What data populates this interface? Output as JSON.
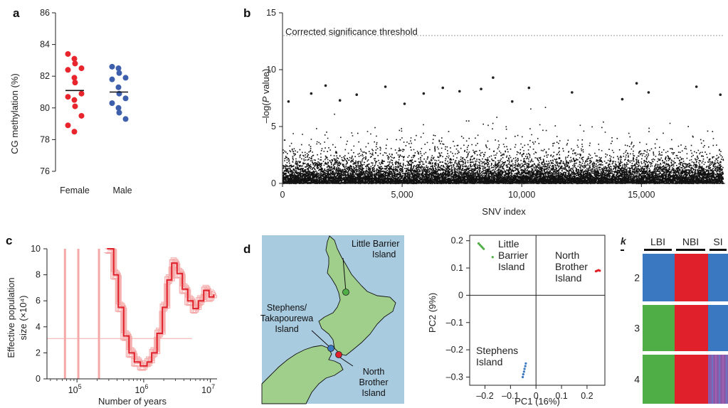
{
  "panels": {
    "a": {
      "letter": "a",
      "chart_data": {
        "type": "scatter",
        "ylabel": "CG methylation (%)",
        "categories": [
          "Female",
          "Male"
        ],
        "yticks": [
          76,
          78,
          80,
          82,
          84,
          86
        ],
        "ylim": [
          76,
          86
        ],
        "series": [
          {
            "name": "Female",
            "values": [
              83.4,
              83.1,
              82.8,
              82.5,
              82.4,
              81.9,
              81.6,
              80.9,
              80.7,
              80.5,
              80.1,
              79.5,
              78.9,
              78.5
            ],
            "mean": 81.1
          },
          {
            "name": "Male",
            "values": [
              82.6,
              82.5,
              82.2,
              81.9,
              81.8,
              81.3,
              80.9,
              80.6,
              80.3,
              80.0,
              79.7,
              79.3
            ],
            "mean": 81.0
          }
        ],
        "colors": {
          "Female": "#e8242c",
          "Male": "#3d5fac"
        }
      }
    },
    "b": {
      "letter": "b",
      "chart_data": {
        "type": "scatter",
        "xlabel": "SNV index",
        "ylabel_prefix": "–log(",
        "ylabel_italic": "P",
        "ylabel_suffix": " value)",
        "xticks": [
          "0",
          "5,000",
          "10,000",
          "15,000"
        ],
        "xtick_values": [
          0,
          5000,
          10000,
          15000
        ],
        "yticks": [
          0,
          5,
          10,
          15
        ],
        "xlim": [
          0,
          18500
        ],
        "ylim": [
          0,
          15
        ],
        "threshold": 13,
        "threshold_label": "Corrected significance threshold",
        "outliers": [
          [
            250,
            7.2
          ],
          [
            1200,
            7.9
          ],
          [
            1800,
            8.6
          ],
          [
            3100,
            7.8
          ],
          [
            4300,
            8.5
          ],
          [
            5100,
            7.0
          ],
          [
            5900,
            7.9
          ],
          [
            6700,
            8.4
          ],
          [
            7400,
            8.1
          ],
          [
            8300,
            8.3
          ],
          [
            8800,
            9.3
          ],
          [
            10300,
            8.4
          ],
          [
            12100,
            8.0
          ],
          [
            14200,
            7.4
          ],
          [
            14800,
            8.8
          ],
          [
            15300,
            8.0
          ],
          [
            17300,
            8.5
          ],
          [
            18300,
            7.8
          ],
          [
            9600,
            7.2
          ],
          [
            2400,
            7.3
          ]
        ],
        "color": "#111111"
      }
    },
    "c": {
      "letter": "c",
      "chart_data": {
        "type": "line",
        "xlabel": "Number of years",
        "ylabel_line1": "Effective population",
        "ylabel_line2": "size (×10⁴)",
        "xtick_bases": [
          "10",
          "10",
          "10"
        ],
        "xtick_exps": [
          "5",
          "6",
          "7"
        ],
        "xtick_values": [
          5,
          6,
          7
        ],
        "yticks": [
          0,
          2,
          4,
          6,
          8,
          10
        ],
        "ylim": [
          0,
          10
        ],
        "xlim_log10": [
          4.55,
          7.1
        ],
        "main_series": {
          "name": "",
          "color": "#e0202a",
          "x_log10": [
            5.45,
            5.55,
            5.62,
            5.7,
            5.78,
            5.86,
            5.95,
            6.05,
            6.12,
            6.2,
            6.28,
            6.35,
            6.42,
            6.5,
            6.58,
            6.66,
            6.74,
            6.82,
            6.9,
            6.98,
            7.05
          ],
          "y": [
            10.0,
            8.0,
            5.5,
            3.3,
            2.0,
            1.3,
            1.0,
            1.3,
            2.0,
            3.5,
            5.5,
            7.6,
            8.9,
            8.1,
            6.9,
            6.0,
            5.4,
            6.0,
            6.8,
            6.3,
            6.5
          ]
        },
        "bootstrap_color": "#f4a9a8",
        "reference_line_y": 3.1,
        "vertical_lines_log10": [
          4.82,
          5.02,
          5.33
        ]
      }
    },
    "d": {
      "letter": "d",
      "map_labels": {
        "little_barrier": [
          "Little Barrier",
          "Island"
        ],
        "stephens": [
          "Stephens/",
          "Takapourewa",
          "Island"
        ],
        "north_brother": [
          "North",
          "Brother",
          "Island"
        ]
      },
      "pca": {
        "chart_data": {
          "type": "scatter",
          "xlabel": "PC1 (16%)",
          "ylabel": "PC2 (9%)",
          "xticks": [
            "–0.2",
            "–0.1",
            "0",
            "0.1",
            "0.2"
          ],
          "xtick_values": [
            -0.2,
            -0.1,
            0,
            0.1,
            0.2
          ],
          "yticks": [
            "–0.3",
            "–0.2",
            "–0.1",
            "0",
            "0.1",
            "0.2"
          ],
          "ytick_values": [
            -0.3,
            -0.2,
            -0.1,
            0,
            0.1,
            0.2
          ],
          "xlim": [
            -0.26,
            0.27
          ],
          "ylim": [
            -0.33,
            0.22
          ],
          "series": [
            {
              "name": "Little Barrier Island",
              "label_lines": [
                "Little",
                "Barrier",
                "Island"
              ],
              "color": "#4fae45",
              "points": [
                [
                  -0.225,
                  0.19
                ],
                [
                  -0.22,
                  0.185
                ],
                [
                  -0.215,
                  0.18
                ],
                [
                  -0.21,
                  0.175
                ],
                [
                  -0.205,
                  0.17
                ],
                [
                  -0.17,
                  0.14
                ]
              ]
            },
            {
              "name": "North Brother Island",
              "label_lines": [
                "North",
                "Brother",
                "Island"
              ],
              "color": "#e0202a",
              "points": [
                [
                  0.235,
                  0.088
                ],
                [
                  0.24,
                  0.09
                ],
                [
                  0.245,
                  0.092
                ],
                [
                  0.25,
                  0.09
                ]
              ]
            },
            {
              "name": "Stephens Island",
              "label_lines": [
                "Stephens",
                "Island"
              ],
              "color": "#3a78c2",
              "points": [
                [
                  -0.04,
                  -0.25
                ],
                [
                  -0.042,
                  -0.26
                ],
                [
                  -0.045,
                  -0.27
                ],
                [
                  -0.047,
                  -0.28
                ],
                [
                  -0.05,
                  -0.29
                ],
                [
                  -0.052,
                  -0.3
                ]
              ]
            }
          ]
        }
      },
      "admixture": {
        "chart_data": {
          "type": "bar",
          "k_label": "k",
          "groups": [
            "LBI",
            "NBI",
            "SI"
          ],
          "group_colors": [
            "#4fae45",
            "#e0202a",
            "#3a78c2"
          ],
          "rows": [
            {
              "k": "2",
              "group_colors": [
                "#3a78c2",
                "#e0202a",
                "#3a78c2"
              ]
            },
            {
              "k": "3",
              "group_colors": [
                "#4fae45",
                "#e0202a",
                "#3a78c2"
              ]
            },
            {
              "k": "4",
              "group_colors": [
                "#4fae45",
                "#e0202a",
                "#8a5aa8"
              ]
            }
          ]
        }
      }
    }
  }
}
